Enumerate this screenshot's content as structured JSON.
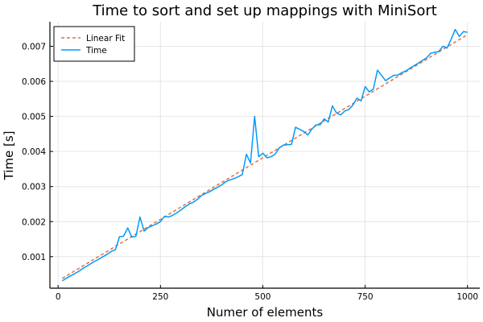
{
  "chart_data": {
    "type": "line",
    "title": "Time to sort and set up mappings with MiniSort",
    "xlabel": "Numer of elements",
    "ylabel": "Time [s]",
    "xlim": [
      -20,
      1030
    ],
    "ylim": [
      0.0001,
      0.0077
    ],
    "xticks": [
      0,
      250,
      500,
      750,
      1000
    ],
    "xtick_labels": [
      "0",
      "250",
      "500",
      "750",
      "1000"
    ],
    "yticks": [
      0.001,
      0.002,
      0.003,
      0.004,
      0.005,
      0.006,
      0.007
    ],
    "ytick_labels": [
      "0.001",
      "0.002",
      "0.003",
      "0.004",
      "0.005",
      "0.006",
      "0.007"
    ],
    "grid": true,
    "legend_position": "top-left",
    "series": [
      {
        "name": "Linear Fit",
        "style": "dashed",
        "color": "#e26f46",
        "x": [
          10,
          1000
        ],
        "y": [
          0.00038,
          0.00733
        ]
      },
      {
        "name": "Time",
        "style": "solid",
        "color": "#009af9",
        "x": [
          10,
          20,
          30,
          40,
          50,
          60,
          70,
          80,
          90,
          100,
          110,
          120,
          130,
          140,
          150,
          160,
          170,
          180,
          190,
          200,
          210,
          220,
          230,
          240,
          250,
          260,
          270,
          280,
          290,
          300,
          310,
          320,
          330,
          340,
          350,
          360,
          370,
          380,
          390,
          400,
          410,
          420,
          430,
          440,
          450,
          460,
          470,
          480,
          490,
          500,
          510,
          520,
          530,
          540,
          550,
          560,
          570,
          580,
          590,
          600,
          610,
          620,
          630,
          640,
          650,
          660,
          670,
          680,
          690,
          700,
          710,
          720,
          730,
          740,
          750,
          760,
          770,
          780,
          790,
          800,
          810,
          820,
          830,
          840,
          850,
          860,
          870,
          880,
          890,
          900,
          910,
          920,
          930,
          940,
          950,
          960,
          970,
          980,
          990,
          1000
        ],
        "y": [
          0.00031,
          0.00038,
          0.00045,
          0.00051,
          0.00058,
          0.00066,
          0.00073,
          0.0008,
          0.00087,
          0.00093,
          0.001,
          0.00107,
          0.00115,
          0.0012,
          0.00157,
          0.00158,
          0.00182,
          0.00156,
          0.00158,
          0.00213,
          0.00173,
          0.00183,
          0.00188,
          0.00193,
          0.002,
          0.00215,
          0.00213,
          0.00218,
          0.00225,
          0.00233,
          0.00242,
          0.0025,
          0.00255,
          0.00263,
          0.00274,
          0.0028,
          0.00285,
          0.00292,
          0.00298,
          0.00305,
          0.00314,
          0.00319,
          0.00323,
          0.00328,
          0.00334,
          0.00392,
          0.00367,
          0.005,
          0.00385,
          0.00395,
          0.00382,
          0.00385,
          0.00392,
          0.0041,
          0.00418,
          0.00419,
          0.0042,
          0.00469,
          0.00463,
          0.00457,
          0.00447,
          0.00464,
          0.00476,
          0.00476,
          0.00493,
          0.00484,
          0.0053,
          0.0051,
          0.00504,
          0.00515,
          0.0052,
          0.00532,
          0.00552,
          0.00544,
          0.00585,
          0.0057,
          0.00578,
          0.00632,
          0.00617,
          0.00602,
          0.0061,
          0.00617,
          0.00618,
          0.00625,
          0.0063,
          0.00638,
          0.00645,
          0.00652,
          0.0066,
          0.00667,
          0.0068,
          0.00683,
          0.00685,
          0.007,
          0.00695,
          0.0072,
          0.00748,
          0.00728,
          0.00742,
          0.0074
        ]
      }
    ]
  }
}
